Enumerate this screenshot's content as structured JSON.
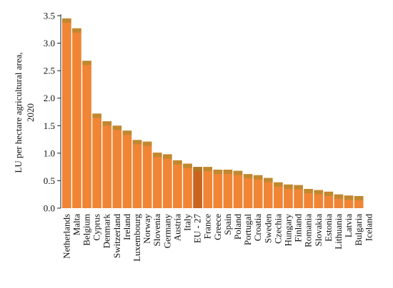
{
  "chart_data": {
    "type": "bar",
    "title": "",
    "xlabel": "",
    "ylabel": "LU per hectare agricultural  area, 2020",
    "ylabel_lines": [
      "LU per hectare agricultural  area,",
      "2020"
    ],
    "ylim": [
      0,
      3.5
    ],
    "yticks": [
      "0.0",
      "0.5",
      "1.0",
      "1.5",
      "2.0",
      "2.5",
      "3.0",
      "3.5"
    ],
    "grid": false,
    "legend": "none",
    "bar_color": "#ef8535",
    "highlight_color": "#c8641e",
    "highlight_category": "EU - 27",
    "categories": [
      "Netherlands",
      "Malta",
      "Belgium",
      "Cyprus",
      "Denmark",
      "Switzerland",
      "Ireland",
      "Luxembourg",
      "Norway",
      "Slovenia",
      "Germany",
      "Austria",
      "Italy",
      "EU - 27",
      "France",
      "Greece",
      "Spain",
      "Poland",
      "Portugal",
      "Croatia",
      "Sweden",
      "Czechia",
      "Hungary",
      "Finland",
      "Romania",
      "Slovakia",
      "Estonia",
      "Lithuania",
      "Latvia",
      "Bulgaria",
      "Iceland"
    ],
    "values": [
      3.45,
      3.27,
      2.68,
      1.72,
      1.58,
      1.5,
      1.41,
      1.24,
      1.21,
      1.01,
      0.98,
      0.87,
      0.81,
      0.75,
      0.75,
      0.7,
      0.7,
      0.68,
      0.62,
      0.6,
      0.55,
      0.47,
      0.43,
      0.42,
      0.35,
      0.33,
      0.3,
      0.25,
      0.23,
      0.22,
      0.0
    ]
  }
}
